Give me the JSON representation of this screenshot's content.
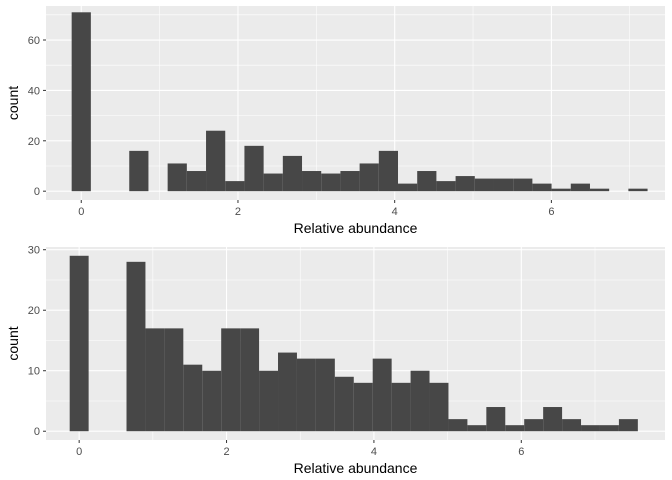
{
  "chart_data": [
    {
      "type": "bar",
      "subtype": "histogram",
      "xlabel": "Relative abundance",
      "ylabel": "count",
      "xlim": [
        -0.45,
        7.45
      ],
      "ylim": [
        -3.5,
        73.5
      ],
      "x_ticks": [
        0,
        2,
        4,
        6
      ],
      "y_ticks": [
        0,
        20,
        40,
        60
      ],
      "x_tick_labels": [
        "0",
        "2",
        "4",
        "6"
      ],
      "y_tick_labels": [
        "0",
        "20",
        "40",
        "60"
      ],
      "bin_width": 0.245,
      "x": [
        0.0,
        0.245,
        0.49,
        0.735,
        0.98,
        1.225,
        1.47,
        1.715,
        1.96,
        2.205,
        2.45,
        2.695,
        2.94,
        3.185,
        3.43,
        3.675,
        3.92,
        4.165,
        4.41,
        4.655,
        4.9,
        5.145,
        5.39,
        5.635,
        5.88,
        6.125,
        6.37,
        6.615,
        6.86,
        7.105
      ],
      "values": [
        71,
        0,
        0,
        16,
        0,
        11,
        8,
        24,
        4,
        18,
        7,
        14,
        8,
        7,
        8,
        11,
        16,
        3,
        8,
        4,
        6,
        5,
        5,
        5,
        3,
        1,
        3,
        1,
        0,
        1
      ],
      "grid": true
    },
    {
      "type": "bar",
      "subtype": "histogram",
      "xlabel": "Relative abundance",
      "ylabel": "count",
      "xlim": [
        -0.45,
        7.95
      ],
      "ylim": [
        -1.45,
        30.45
      ],
      "x_ticks": [
        0,
        2,
        4,
        6
      ],
      "y_ticks": [
        0,
        10,
        20,
        30
      ],
      "x_tick_labels": [
        "0",
        "2",
        "4",
        "6"
      ],
      "y_tick_labels": [
        "0",
        "10",
        "20",
        "30"
      ],
      "bin_width": 0.257,
      "x": [
        0.0,
        0.257,
        0.514,
        0.771,
        1.028,
        1.285,
        1.542,
        1.799,
        2.056,
        2.313,
        2.57,
        2.827,
        3.084,
        3.341,
        3.598,
        3.855,
        4.112,
        4.369,
        4.626,
        4.883,
        5.14,
        5.397,
        5.654,
        5.911,
        6.168,
        6.425,
        6.682,
        6.939,
        7.196,
        7.453
      ],
      "values": [
        29,
        0,
        0,
        28,
        17,
        17,
        11,
        10,
        17,
        17,
        10,
        13,
        12,
        12,
        9,
        8,
        12,
        8,
        10,
        8,
        2,
        1,
        4,
        1,
        2,
        4,
        2,
        1,
        1,
        2
      ],
      "grid": true
    }
  ]
}
